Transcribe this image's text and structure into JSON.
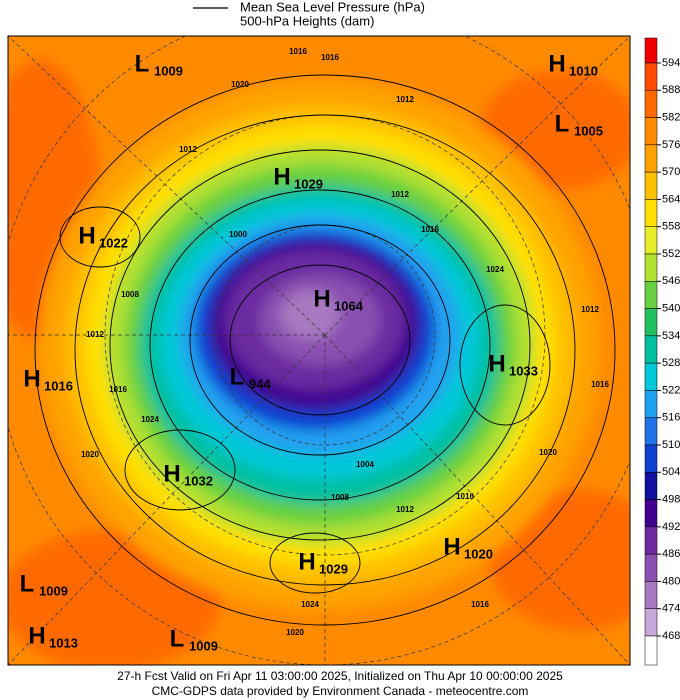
{
  "legend": {
    "line_label": "Mean Sea Level Pressure (hPa)",
    "fill_label": "500-hPa Heights (dam)"
  },
  "colorbar": {
    "ticks": [
      594,
      588,
      582,
      576,
      570,
      564,
      558,
      552,
      546,
      540,
      534,
      528,
      522,
      516,
      510,
      504,
      498,
      492,
      486,
      480,
      474,
      468
    ],
    "colors": [
      "#ee0000",
      "#ff4a00",
      "#ff6a00",
      "#ff8a00",
      "#ffa200",
      "#ffc000",
      "#ffe000",
      "#e6ee2a",
      "#b0e030",
      "#66d040",
      "#22c060",
      "#00c0a0",
      "#00c8d8",
      "#20a0f0",
      "#2070e8",
      "#1040d0",
      "#1010a0",
      "#400090",
      "#6a2aa0",
      "#8a50b0",
      "#a878c0",
      "#c8a8d8",
      "#ffffff"
    ]
  },
  "centers": [
    {
      "letter": "L",
      "value": "1009"
    },
    {
      "letter": "H",
      "value": "1010"
    },
    {
      "letter": "L",
      "value": "1005"
    },
    {
      "letter": "H",
      "value": "1029"
    },
    {
      "letter": "H",
      "value": "1022"
    },
    {
      "letter": "H",
      "value": "1064"
    },
    {
      "letter": "H",
      "value": "1033"
    },
    {
      "letter": "H",
      "value": "1016"
    },
    {
      "letter": "L",
      "value": "944"
    },
    {
      "letter": "H",
      "value": "1032"
    },
    {
      "letter": "H",
      "value": "1020"
    },
    {
      "letter": "H",
      "value": "1029"
    },
    {
      "letter": "L",
      "value": "1009"
    },
    {
      "letter": "H",
      "value": "1013"
    },
    {
      "letter": "L",
      "value": "1009"
    }
  ],
  "isobar_labels": [
    "1016",
    "1016",
    "1020",
    "1012",
    "1012",
    "1012",
    "1016",
    "1024",
    "1000",
    "1008",
    "1012",
    "1016",
    "1024",
    "1020",
    "1004",
    "1008",
    "1012",
    "1016",
    "1020",
    "1016",
    "1012",
    "1020",
    "1024",
    "1016"
  ],
  "footer": [
    "27-h Fcst Valid on Fri Apr 11 03:00:00 2025, Initialized on Thu Apr 10 00:00:00 2025",
    "CMC-GDPS data provided by Environment Canada - meteocentre.com"
  ]
}
